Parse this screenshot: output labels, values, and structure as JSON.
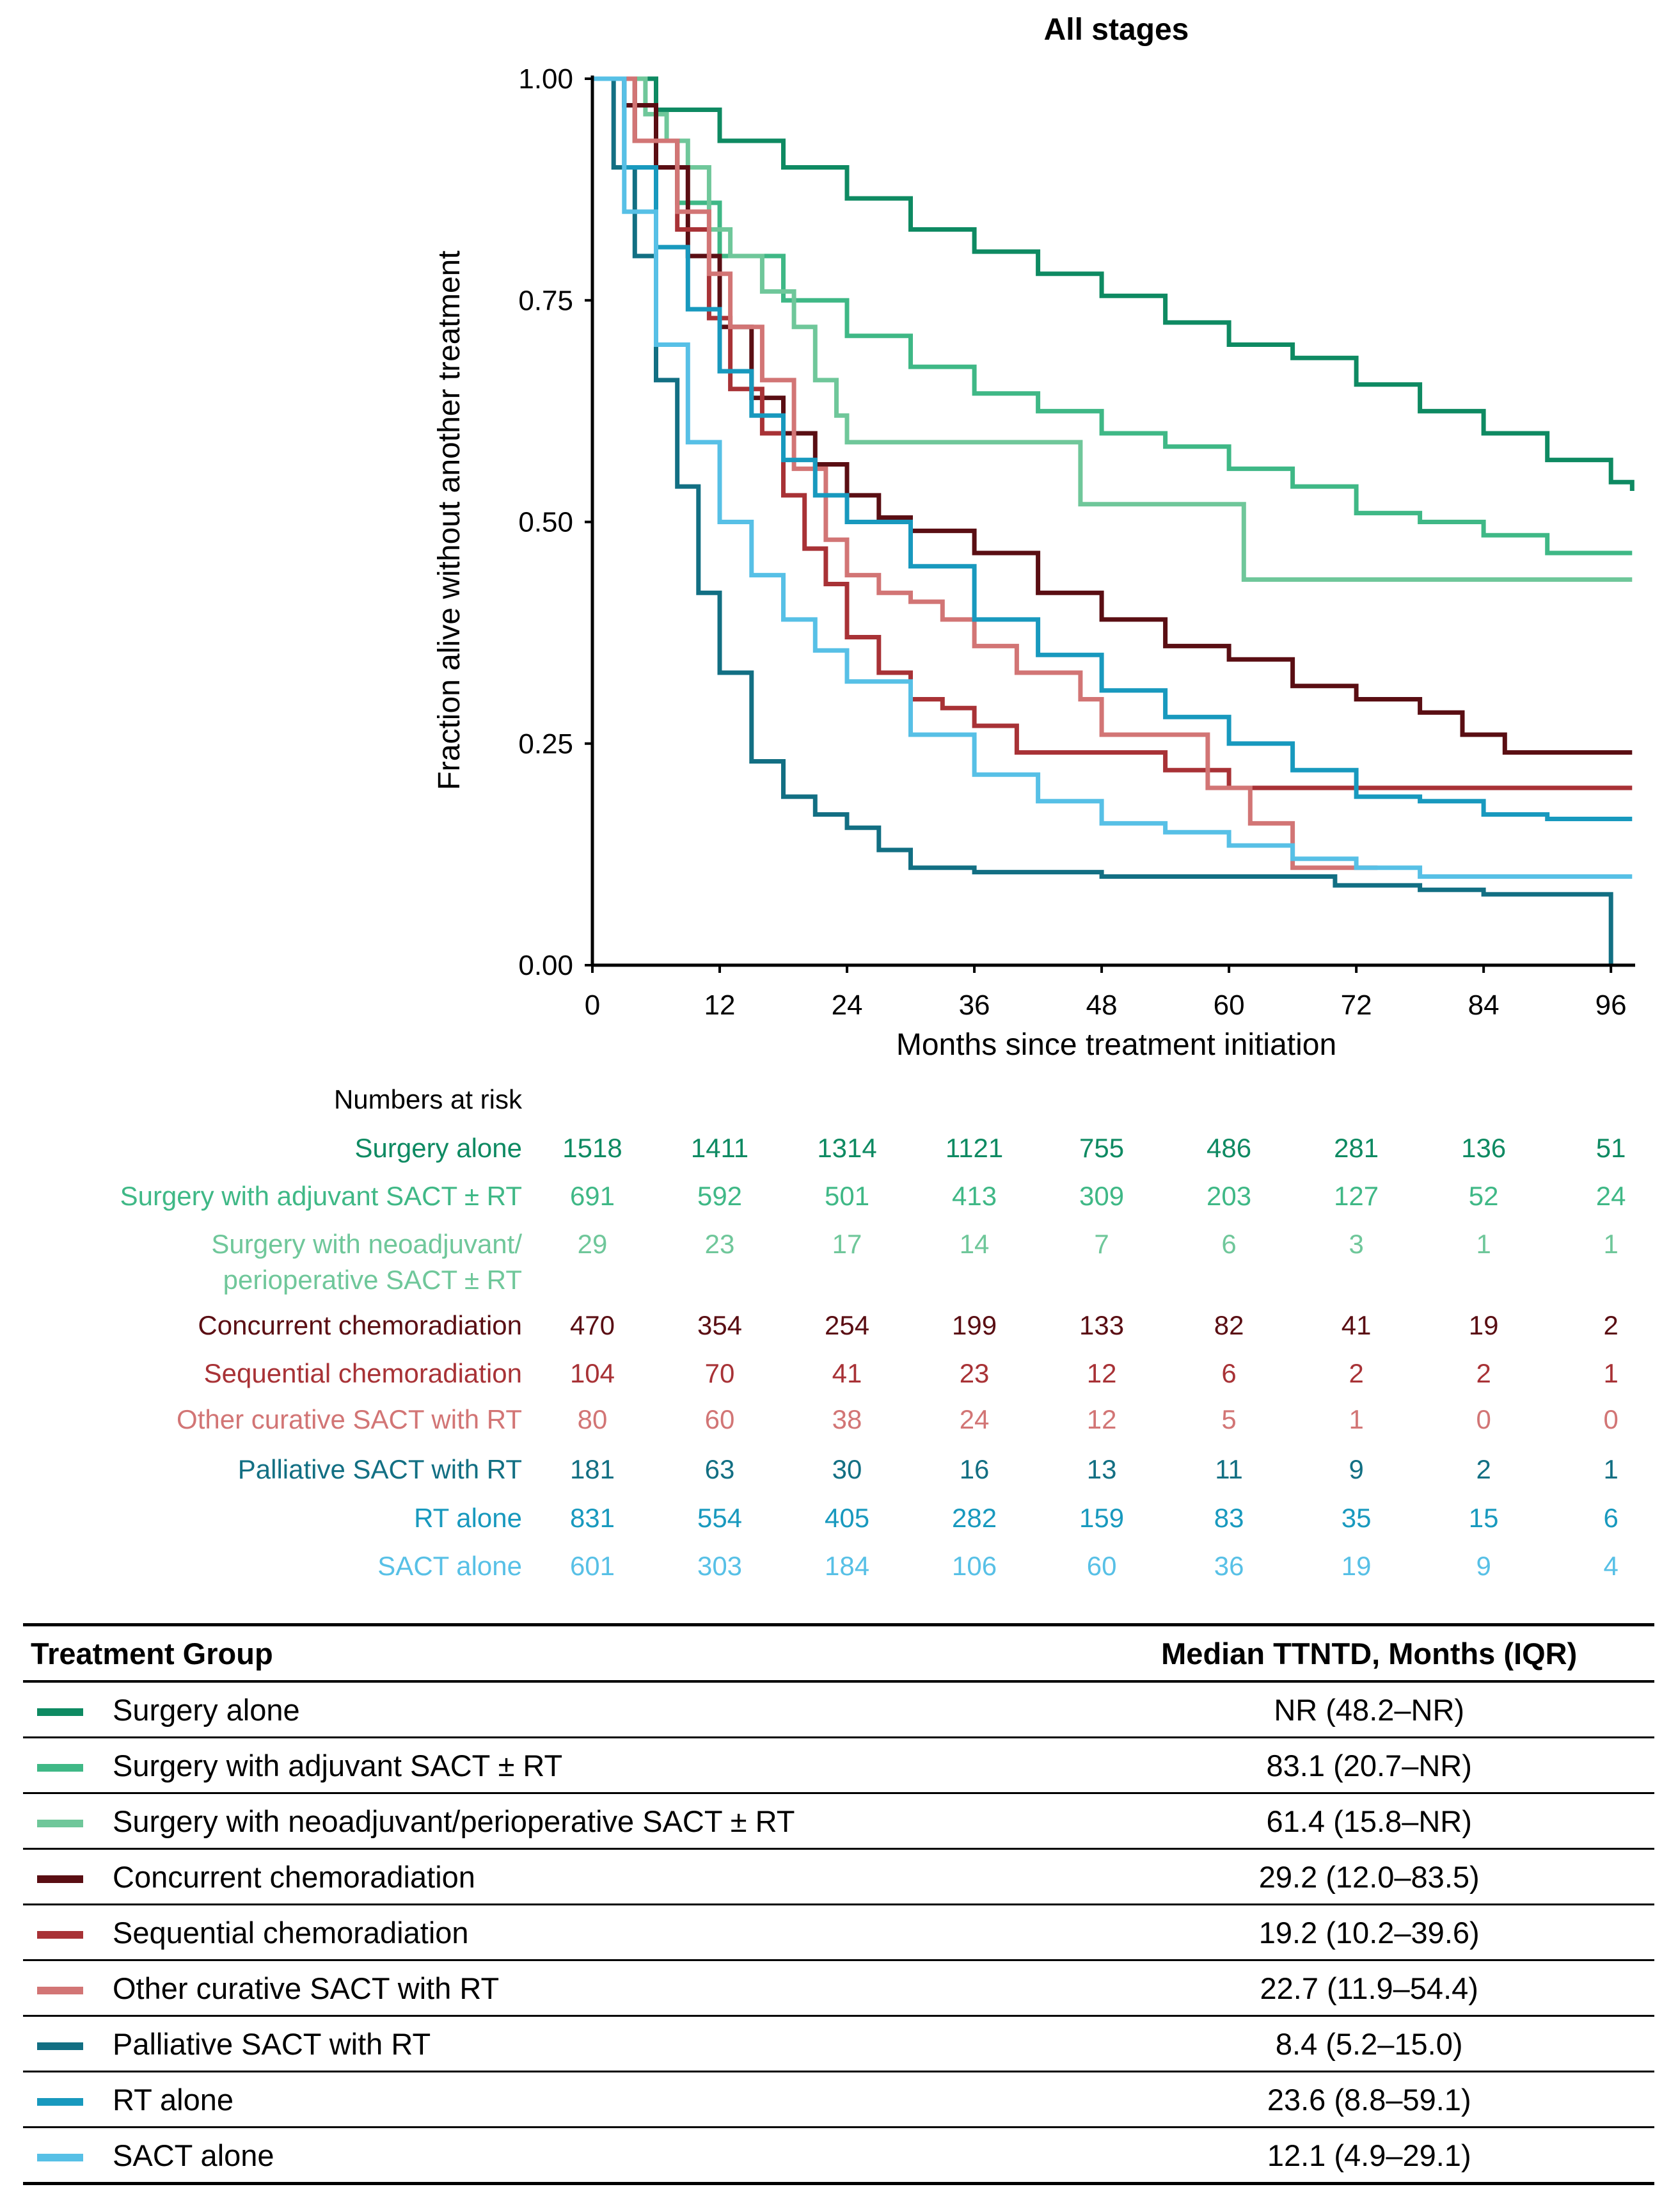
{
  "chart_data": {
    "type": "line",
    "subtype": "kaplan-meier step",
    "title": "All stages",
    "xlabel": "Months since treatment initiation",
    "ylabel": "Fraction alive without another treatment",
    "xlim": [
      0,
      98
    ],
    "ylim": [
      0,
      1
    ],
    "xticks": [
      0,
      12,
      24,
      36,
      48,
      60,
      72,
      84,
      96
    ],
    "yticks": [
      0,
      0.25,
      0.5,
      0.75,
      1
    ],
    "ytick_labels": [
      "0.00",
      "0.25",
      "0.50",
      "0.75",
      "1.00"
    ],
    "series": [
      {
        "name": "Surgery alone",
        "color": "#0e8a62",
        "points": [
          [
            0,
            1
          ],
          [
            6,
            0.965
          ],
          [
            12,
            0.93
          ],
          [
            18,
            0.9
          ],
          [
            24,
            0.865
          ],
          [
            30,
            0.83
          ],
          [
            36,
            0.805
          ],
          [
            42,
            0.78
          ],
          [
            48,
            0.755
          ],
          [
            54,
            0.725
          ],
          [
            60,
            0.7
          ],
          [
            66,
            0.685
          ],
          [
            72,
            0.655
          ],
          [
            78,
            0.625
          ],
          [
            84,
            0.6
          ],
          [
            90,
            0.57
          ],
          [
            96,
            0.545
          ],
          [
            98,
            0.535
          ]
        ]
      },
      {
        "name": "Surgery with adjuvant SACT ± RT",
        "color": "#3fb886",
        "points": [
          [
            0,
            1
          ],
          [
            4,
            0.93
          ],
          [
            8,
            0.86
          ],
          [
            12,
            0.8
          ],
          [
            18,
            0.75
          ],
          [
            24,
            0.71
          ],
          [
            30,
            0.675
          ],
          [
            36,
            0.645
          ],
          [
            42,
            0.625
          ],
          [
            48,
            0.6
          ],
          [
            54,
            0.585
          ],
          [
            60,
            0.56
          ],
          [
            66,
            0.54
          ],
          [
            72,
            0.51
          ],
          [
            78,
            0.5
          ],
          [
            84,
            0.485
          ],
          [
            90,
            0.465
          ],
          [
            98,
            0.465
          ]
        ]
      },
      {
        "name": "Surgery with neoadjuvant/perioperative SACT ± RT",
        "color": "#6fc79a",
        "points": [
          [
            0,
            1
          ],
          [
            5,
            0.96
          ],
          [
            7,
            0.93
          ],
          [
            9,
            0.9
          ],
          [
            11,
            0.83
          ],
          [
            13,
            0.8
          ],
          [
            16,
            0.76
          ],
          [
            19,
            0.72
          ],
          [
            21,
            0.66
          ],
          [
            23,
            0.62
          ],
          [
            24,
            0.59
          ],
          [
            46,
            0.59
          ],
          [
            46,
            0.52
          ],
          [
            61.4,
            0.52
          ],
          [
            61.4,
            0.435
          ],
          [
            98,
            0.435
          ]
        ]
      },
      {
        "name": "Concurrent chemoradiation",
        "color": "#5a0e13",
        "points": [
          [
            0,
            1
          ],
          [
            3,
            0.97
          ],
          [
            6,
            0.9
          ],
          [
            9,
            0.8
          ],
          [
            12,
            0.72
          ],
          [
            15,
            0.64
          ],
          [
            18,
            0.6
          ],
          [
            21,
            0.565
          ],
          [
            24,
            0.53
          ],
          [
            27,
            0.505
          ],
          [
            30,
            0.49
          ],
          [
            36,
            0.465
          ],
          [
            42,
            0.42
          ],
          [
            48,
            0.39
          ],
          [
            54,
            0.36
          ],
          [
            60,
            0.345
          ],
          [
            66,
            0.315
          ],
          [
            72,
            0.3
          ],
          [
            78,
            0.285
          ],
          [
            82,
            0.26
          ],
          [
            84,
            0.26
          ],
          [
            86,
            0.24
          ],
          [
            98,
            0.24
          ]
        ]
      },
      {
        "name": "Sequential chemoradiation",
        "color": "#a83236",
        "points": [
          [
            0,
            1
          ],
          [
            4,
            0.93
          ],
          [
            8,
            0.83
          ],
          [
            11,
            0.73
          ],
          [
            13,
            0.65
          ],
          [
            16,
            0.6
          ],
          [
            18,
            0.53
          ],
          [
            20,
            0.47
          ],
          [
            22,
            0.43
          ],
          [
            24,
            0.37
          ],
          [
            27,
            0.33
          ],
          [
            30,
            0.3
          ],
          [
            33,
            0.29
          ],
          [
            36,
            0.27
          ],
          [
            40,
            0.24
          ],
          [
            48,
            0.24
          ],
          [
            54,
            0.22
          ],
          [
            60,
            0.2
          ],
          [
            98,
            0.2
          ]
        ]
      },
      {
        "name": "Other curative SACT with RT",
        "color": "#d27575",
        "points": [
          [
            0,
            1
          ],
          [
            4,
            0.93
          ],
          [
            8,
            0.85
          ],
          [
            11,
            0.78
          ],
          [
            13,
            0.72
          ],
          [
            16,
            0.66
          ],
          [
            19,
            0.56
          ],
          [
            22,
            0.48
          ],
          [
            24,
            0.44
          ],
          [
            27,
            0.42
          ],
          [
            30,
            0.41
          ],
          [
            33,
            0.39
          ],
          [
            36,
            0.36
          ],
          [
            40,
            0.33
          ],
          [
            46,
            0.3
          ],
          [
            48,
            0.26
          ],
          [
            56,
            0.26
          ],
          [
            58,
            0.2
          ],
          [
            62,
            0.2
          ],
          [
            62,
            0.16
          ],
          [
            66,
            0.16
          ],
          [
            66,
            0.11
          ],
          [
            74,
            0.11
          ]
        ]
      },
      {
        "name": "Palliative SACT with RT",
        "color": "#126f83",
        "points": [
          [
            0,
            1
          ],
          [
            2,
            0.9
          ],
          [
            4,
            0.8
          ],
          [
            6,
            0.66
          ],
          [
            8,
            0.54
          ],
          [
            10,
            0.42
          ],
          [
            12,
            0.33
          ],
          [
            15,
            0.23
          ],
          [
            18,
            0.19
          ],
          [
            21,
            0.17
          ],
          [
            24,
            0.155
          ],
          [
            27,
            0.13
          ],
          [
            30,
            0.11
          ],
          [
            36,
            0.105
          ],
          [
            48,
            0.1
          ],
          [
            60,
            0.1
          ],
          [
            70,
            0.09
          ],
          [
            78,
            0.085
          ],
          [
            84,
            0.08
          ],
          [
            96,
            0.08
          ],
          [
            96,
            0.0
          ]
        ]
      },
      {
        "name": "RT alone",
        "color": "#1899be",
        "points": [
          [
            0,
            1
          ],
          [
            3,
            0.9
          ],
          [
            6,
            0.81
          ],
          [
            9,
            0.74
          ],
          [
            12,
            0.67
          ],
          [
            15,
            0.62
          ],
          [
            18,
            0.57
          ],
          [
            21,
            0.53
          ],
          [
            24,
            0.5
          ],
          [
            30,
            0.45
          ],
          [
            36,
            0.39
          ],
          [
            42,
            0.35
          ],
          [
            48,
            0.31
          ],
          [
            54,
            0.28
          ],
          [
            60,
            0.25
          ],
          [
            66,
            0.22
          ],
          [
            72,
            0.19
          ],
          [
            78,
            0.185
          ],
          [
            84,
            0.17
          ],
          [
            90,
            0.165
          ],
          [
            98,
            0.165
          ]
        ]
      },
      {
        "name": "SACT alone",
        "color": "#57c0e6",
        "points": [
          [
            0,
            1
          ],
          [
            3,
            0.85
          ],
          [
            6,
            0.7
          ],
          [
            9,
            0.59
          ],
          [
            12,
            0.5
          ],
          [
            15,
            0.44
          ],
          [
            18,
            0.39
          ],
          [
            21,
            0.355
          ],
          [
            24,
            0.32
          ],
          [
            30,
            0.26
          ],
          [
            36,
            0.215
          ],
          [
            42,
            0.185
          ],
          [
            48,
            0.16
          ],
          [
            54,
            0.15
          ],
          [
            60,
            0.135
          ],
          [
            66,
            0.12
          ],
          [
            72,
            0.11
          ],
          [
            78,
            0.1
          ],
          [
            84,
            0.1
          ],
          [
            90,
            0.1
          ],
          [
            98,
            0.1
          ]
        ]
      }
    ],
    "numbers_at_risk": {
      "heading": "Numbers at risk",
      "timepoints": [
        0,
        12,
        24,
        36,
        48,
        60,
        72,
        84,
        96
      ],
      "rows": [
        {
          "label_lines": [
            "Surgery alone"
          ],
          "color": "#0e8a62",
          "values": [
            "1518",
            "1411",
            "1314",
            "1121",
            "755",
            "486",
            "281",
            "136",
            "51"
          ]
        },
        {
          "label_lines": [
            "Surgery with adjuvant SACT ± RT"
          ],
          "color": "#3fb886",
          "values": [
            "691",
            "592",
            "501",
            "413",
            "309",
            "203",
            "127",
            "52",
            "24"
          ]
        },
        {
          "label_lines": [
            "Surgery with neoadjuvant/",
            "perioperative SACT ± RT"
          ],
          "color": "#6fc79a",
          "values": [
            "29",
            "23",
            "17",
            "14",
            "7",
            "6",
            "3",
            "1",
            "1"
          ]
        },
        {
          "label_lines": [
            "Concurrent chemoradiation"
          ],
          "color": "#5a0e13",
          "values": [
            "470",
            "354",
            "254",
            "199",
            "133",
            "82",
            "41",
            "19",
            "2"
          ]
        },
        {
          "label_lines": [
            "Sequential chemoradiation"
          ],
          "color": "#a83236",
          "values": [
            "104",
            "70",
            "41",
            "23",
            "12",
            "6",
            "2",
            "2",
            "1"
          ]
        },
        {
          "label_lines": [
            "Other curative SACT with RT"
          ],
          "color": "#d27575",
          "values": [
            "80",
            "60",
            "38",
            "24",
            "12",
            "5",
            "1",
            "0",
            "0"
          ]
        },
        {
          "label_lines": [
            "Palliative SACT with RT"
          ],
          "color": "#126f83",
          "values": [
            "181",
            "63",
            "30",
            "16",
            "13",
            "11",
            "9",
            "2",
            "1"
          ]
        },
        {
          "label_lines": [
            "RT alone"
          ],
          "color": "#1899be",
          "values": [
            "831",
            "554",
            "405",
            "282",
            "159",
            "83",
            "35",
            "15",
            "6"
          ]
        },
        {
          "label_lines": [
            "SACT alone"
          ],
          "color": "#57c0e6",
          "values": [
            "601",
            "303",
            "184",
            "106",
            "60",
            "36",
            "19",
            "9",
            "4"
          ]
        }
      ]
    },
    "median_table": {
      "headers": [
        "Treatment Group",
        "Median TTNTD, Months (IQR)"
      ],
      "rows": [
        {
          "group": "Surgery alone",
          "color": "#0e8a62",
          "median": "NR (48.2–NR)"
        },
        {
          "group": "Surgery with adjuvant SACT ± RT",
          "color": "#3fb886",
          "median": "83.1 (20.7–NR)"
        },
        {
          "group": "Surgery with neoadjuvant/perioperative SACT ± RT",
          "color": "#6fc79a",
          "median": "61.4 (15.8–NR)"
        },
        {
          "group": "Concurrent chemoradiation",
          "color": "#5a0e13",
          "median": "29.2 (12.0–83.5)"
        },
        {
          "group": "Sequential chemoradiation",
          "color": "#a83236",
          "median": "19.2 (10.2–39.6)"
        },
        {
          "group": "Other curative SACT with RT",
          "color": "#d27575",
          "median": "22.7 (11.9–54.4)"
        },
        {
          "group": "Palliative SACT with RT",
          "color": "#126f83",
          "median": "8.4 (5.2–15.0)"
        },
        {
          "group": "RT alone",
          "color": "#1899be",
          "median": "23.6 (8.8–59.1)"
        },
        {
          "group": "SACT alone",
          "color": "#57c0e6",
          "median": "12.1 (4.9–29.1)"
        }
      ]
    }
  }
}
